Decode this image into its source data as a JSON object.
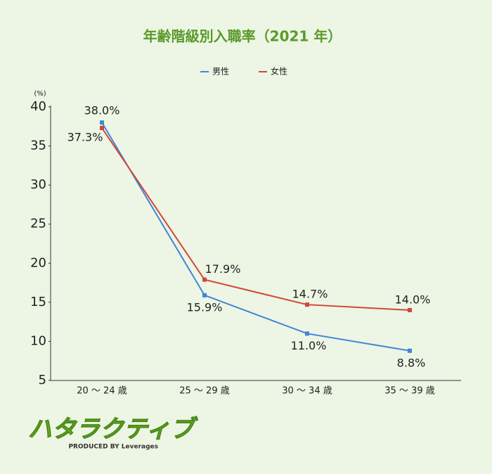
{
  "chart_data": {
    "type": "line",
    "title": "年齢階級別入職率（2021 年）",
    "y_unit": "(%)",
    "categories": [
      "20 ～ 24 歳",
      "25 ～ 29 歳",
      "30 ～ 34 歳",
      "35 ～ 39 歳"
    ],
    "series": [
      {
        "name": "男性",
        "color": "#3f86d8",
        "values": [
          38.0,
          15.9,
          11.0,
          8.8
        ],
        "value_labels": [
          "38.0%",
          "15.9%",
          "11.0%",
          "8.8%"
        ]
      },
      {
        "name": "女性",
        "color": "#d0483a",
        "values": [
          37.3,
          17.9,
          14.7,
          14.0
        ],
        "value_labels": [
          "37.3%",
          "17.9%",
          "14.7%",
          "14.0%"
        ]
      }
    ],
    "ylim": [
      5,
      40
    ],
    "yticks": [
      5,
      10,
      15,
      20,
      25,
      30,
      35,
      40
    ],
    "grid": false,
    "legend": "top"
  },
  "branding": {
    "logo": "ハタラクティブ",
    "credit": "PRODUCED BY Leverages"
  }
}
